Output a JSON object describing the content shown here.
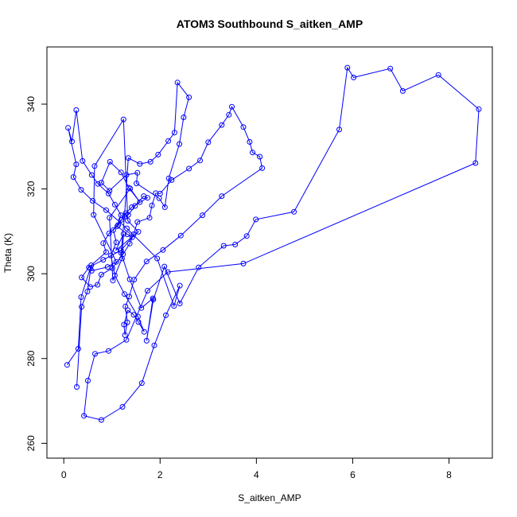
{
  "chart_data": {
    "type": "line",
    "title": "ATOM3 Southbound S_aitken_AMP",
    "xlabel": "S_aitken_AMP",
    "ylabel": "Theta (K)",
    "xlim": [
      -0.35,
      8.9
    ],
    "ylim": [
      256.5,
      353.5
    ],
    "xticks": [
      0,
      2,
      4,
      6,
      8
    ],
    "yticks": [
      260,
      280,
      300,
      320,
      340
    ],
    "xtick_labels": [
      "0",
      "2",
      "4",
      "6",
      "8"
    ],
    "ytick_labels": [
      "260",
      "280",
      "300",
      "320",
      "340"
    ],
    "grid": false,
    "legend": "none",
    "series": [
      {
        "color": "#0000ff",
        "marker": "open-circle",
        "x": [
          0.07,
          0.3,
          0.36,
          0.55,
          0.58,
          0.91,
          1.09,
          0.62,
          0.64,
          1.24,
          1.33,
          1.55,
          1.08,
          1.24,
          1.21,
          1.02,
          0.95,
          1.38,
          1.58,
          1.35,
          1.19,
          0.96,
          0.78,
          0.95,
          1.3,
          1.53,
          1.51,
          1.98,
          2.1,
          2.18,
          2.4,
          2.49,
          2.6,
          2.36,
          2.3,
          2.17,
          1.96,
          1.8,
          1.58,
          1.34,
          1.26,
          1.19,
          1.37,
          1.61,
          1.85,
          1.72,
          1.86,
          2.09,
          2.41,
          2.8,
          3.32,
          3.56,
          3.8,
          3.99,
          4.78,
          5.72,
          5.89,
          6.02,
          6.78,
          7.04,
          7.78,
          8.62,
          8.55,
          3.73,
          2.16,
          1.74,
          1.3,
          0.93,
          0.65,
          0.5,
          0.42,
          0.78,
          1.22,
          1.62,
          1.88,
          2.12,
          2.41,
          2.29,
          1.94,
          1.31,
          0.88,
          0.6,
          0.36,
          0.2,
          0.26,
          0.09,
          0.17,
          0.26,
          0.39,
          0.58,
          0.71,
          0.93,
          1.06,
          1.19,
          1.11,
          1.32,
          1.42,
          1.19,
          0.82,
          0.52,
          0.37,
          0.55,
          0.7,
          0.78,
          1.01,
          1.23,
          1.37,
          1.45,
          1.53,
          1.78,
          1.83,
          1.91,
          2.0,
          2.24,
          2.6,
          2.83,
          3.0,
          3.28,
          3.43,
          3.49,
          3.73,
          3.86,
          3.92,
          4.07,
          4.12,
          3.28,
          2.88,
          2.43,
          2.06,
          1.72,
          1.46,
          1.36,
          1.28,
          1.32,
          1.27,
          1.25,
          1.33,
          1.45,
          1.55,
          1.67,
          1.54,
          1.26,
          1.06,
          0.98,
          1.09,
          1.03,
          1.19,
          1.34,
          1.48,
          1.66,
          1.74,
          1.41,
          1.29,
          1.13,
          0.94,
          0.82,
          0.88,
          0.57,
          0.49,
          0.37,
          0.27
        ],
        "y": [
          278.5,
          282.3,
          294.5,
          301.3,
          300.7,
          301.6,
          302.8,
          313.9,
          325.4,
          336.4,
          312.5,
          309.9,
          305.5,
          309.4,
          303.6,
          298.4,
          313.2,
          320.1,
          316.9,
          320.3,
          323.9,
          326.4,
          321.5,
          319.6,
          323.3,
          323.8,
          321.3,
          317.8,
          315.7,
          322.5,
          330.6,
          336.9,
          341.6,
          345.1,
          333.3,
          331.3,
          328.1,
          326.4,
          325.9,
          327.3,
          313.5,
          304.9,
          298.7,
          291.9,
          294.2,
          284.2,
          293.9,
          301.7,
          293.0,
          301.5,
          306.6,
          306.9,
          308.9,
          312.8,
          314.6,
          334.0,
          348.6,
          346.3,
          348.4,
          343.1,
          346.9,
          338.8,
          326.1,
          302.4,
          300.4,
          296.0,
          284.4,
          281.8,
          281.1,
          274.8,
          266.5,
          265.5,
          268.6,
          274.2,
          283.1,
          290.2,
          297.2,
          292.4,
          303.6,
          310.7,
          315.0,
          317.2,
          319.8,
          322.8,
          325.8,
          334.4,
          331.2,
          338.6,
          326.6,
          323.3,
          321.2,
          318.9,
          316.3,
          313.8,
          311.2,
          309.3,
          308.6,
          305.5,
          303.3,
          301.5,
          299.1,
          296.9,
          297.4,
          299.8,
          301.3,
          304.6,
          307.1,
          309.3,
          312.2,
          313.2,
          316.1,
          319.0,
          318.9,
          322.1,
          324.8,
          326.7,
          331.0,
          335.1,
          337.5,
          339.4,
          334.6,
          331.1,
          328.6,
          327.6,
          324.9,
          318.3,
          313.8,
          309.0,
          305.6,
          302.9,
          298.6,
          294.6,
          292.3,
          288.5,
          285.5,
          288.0,
          291.4,
          290.3,
          288.6,
          286.3,
          289.9,
          295.2,
          299.6,
          304.3,
          307.4,
          310.3,
          312.7,
          313.9,
          316.0,
          318.3,
          317.9,
          315.7,
          314.3,
          311.5,
          309.5,
          307.2,
          305.1,
          302.0,
          295.8,
          292.2,
          273.3
        ]
      }
    ]
  }
}
